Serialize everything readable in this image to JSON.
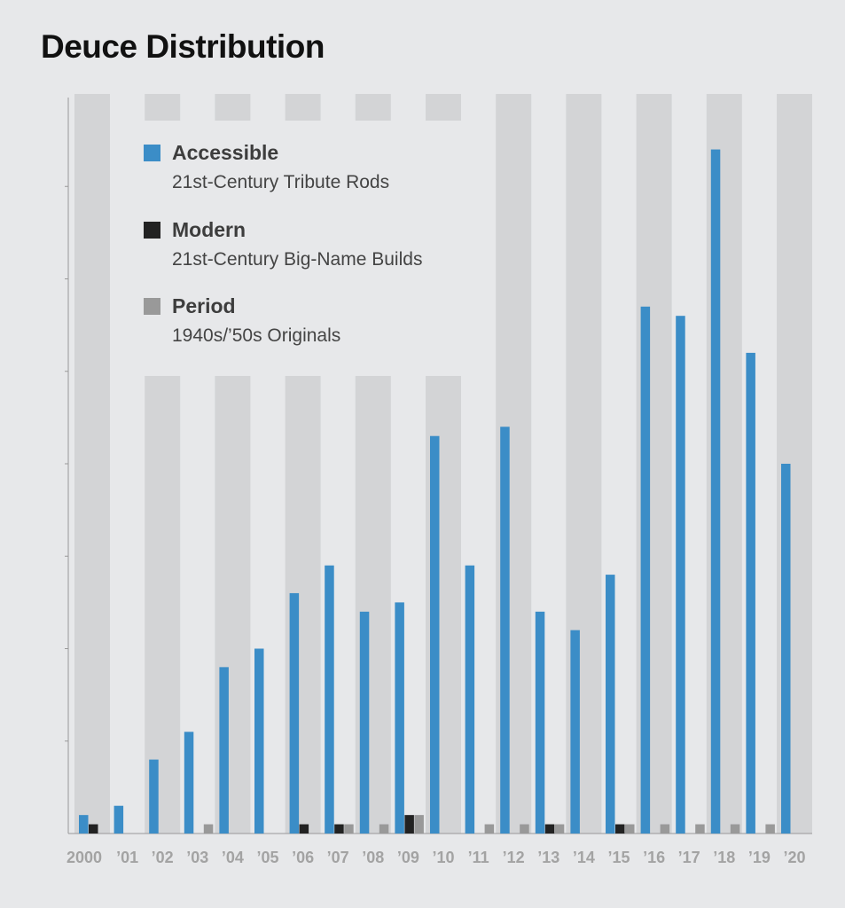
{
  "chart_data": {
    "type": "bar",
    "title": "Deuce Distribution",
    "categories": [
      "2000",
      "’01",
      "’02",
      "’03",
      "’04",
      "’05",
      "’06",
      "’07",
      "’08",
      "’09",
      "’10",
      "’11",
      "’12",
      "’13",
      "’14",
      "’15",
      "’16",
      "’17",
      "’18",
      "’19",
      "’20"
    ],
    "series": [
      {
        "name": "Accessible",
        "description": "21st-Century Tribute Rods",
        "color": "#3b8dc7",
        "values": [
          2,
          3,
          8,
          11,
          18,
          20,
          26,
          29,
          24,
          25,
          43,
          29,
          44,
          24,
          22,
          28,
          57,
          56,
          74,
          52,
          40
        ]
      },
      {
        "name": "Modern",
        "description": "21st-Century Big-Name Builds",
        "color": "#222222",
        "values": [
          1,
          0,
          0,
          0,
          0,
          0,
          1,
          1,
          0,
          2,
          0,
          0,
          0,
          1,
          0,
          1,
          0,
          0,
          0,
          0,
          0
        ]
      },
      {
        "name": "Period",
        "description": "1940s/’50s Originals",
        "color": "#999999",
        "values": [
          0,
          0,
          0,
          1,
          0,
          0,
          0,
          1,
          1,
          2,
          0,
          1,
          1,
          1,
          0,
          1,
          1,
          1,
          1,
          1,
          0
        ]
      }
    ],
    "ylim": [
      0,
      80
    ],
    "xlabel": "",
    "ylabel": "",
    "grid": false,
    "legend_position": "top-left"
  }
}
